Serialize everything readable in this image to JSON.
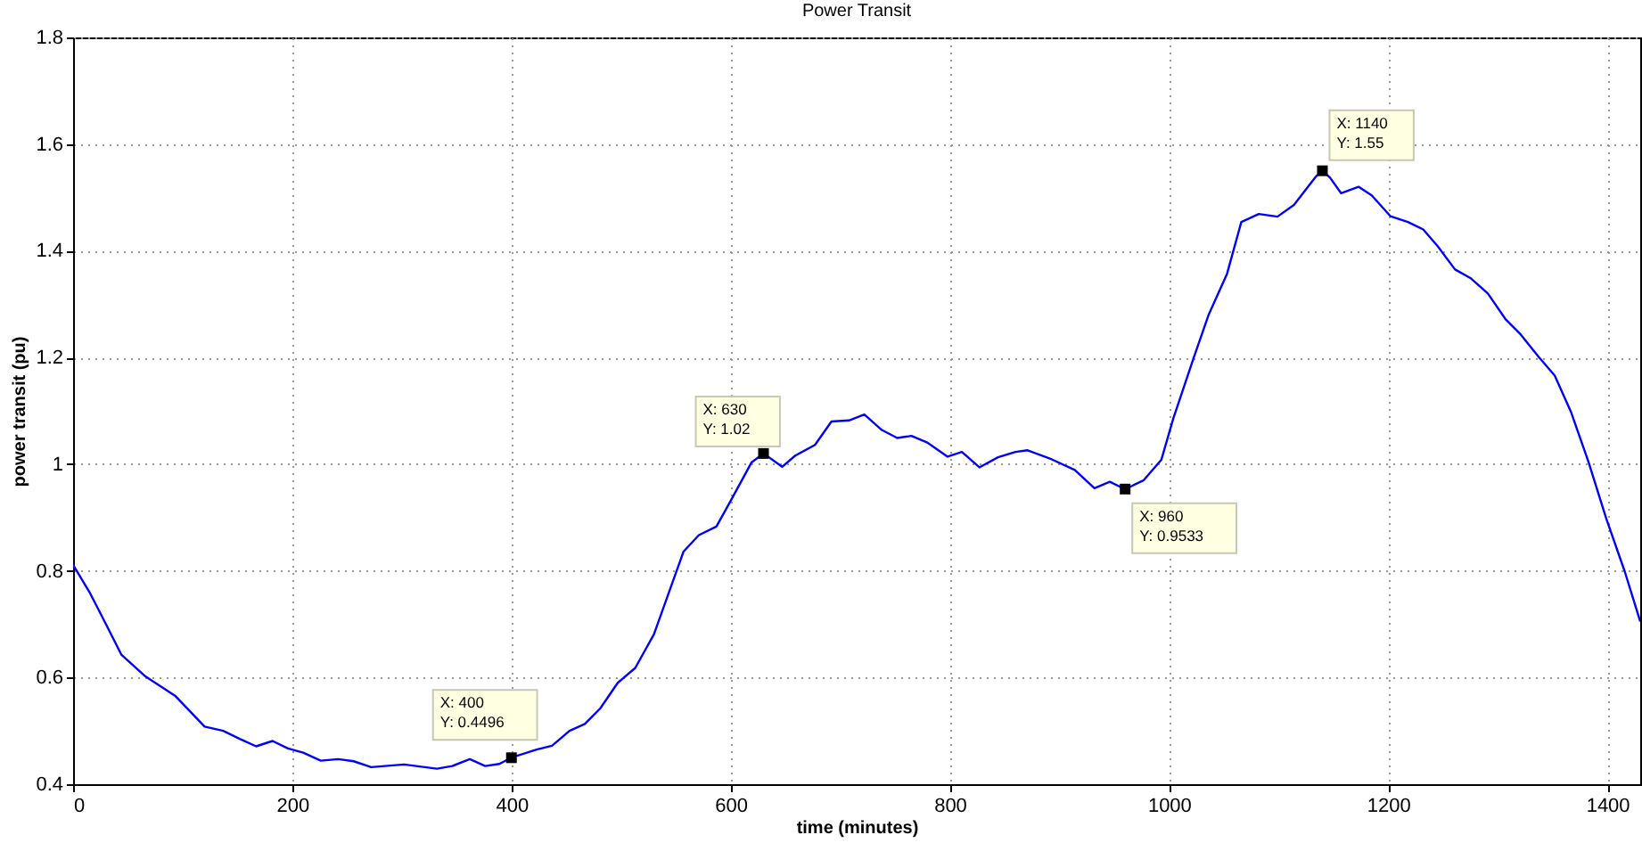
{
  "chart_data": {
    "type": "line",
    "title": "Power Transit",
    "xlabel": "time (minutes)",
    "ylabel": "power transit (pu)",
    "x": [
      0,
      15,
      30,
      44,
      66,
      93,
      120,
      137,
      152,
      167,
      182,
      196,
      210,
      226,
      242,
      256,
      272,
      302,
      332,
      346,
      362,
      376,
      389,
      400,
      423,
      437,
      453,
      467,
      481,
      497,
      513,
      530,
      557,
      571,
      587,
      600,
      619,
      630,
      647,
      659,
      677,
      692,
      708,
      722,
      738,
      752,
      765,
      779,
      798,
      811,
      827,
      844,
      860,
      871,
      893,
      914,
      932,
      946,
      960,
      977,
      993,
      1004,
      1023,
      1036,
      1053,
      1066,
      1082,
      1099,
      1114,
      1134,
      1140,
      1147,
      1157,
      1173,
      1185,
      1202,
      1218,
      1232,
      1245,
      1261,
      1275,
      1291,
      1307,
      1321,
      1337,
      1352,
      1367,
      1383,
      1399,
      1416,
      1430
    ],
    "series": [
      {
        "color": "#0000ff",
        "values": [
          0.811,
          0.76,
          0.7,
          0.643,
          0.602,
          0.566,
          0.508,
          0.5,
          0.485,
          0.471,
          0.481,
          0.467,
          0.459,
          0.444,
          0.447,
          0.443,
          0.432,
          0.437,
          0.429,
          0.434,
          0.447,
          0.434,
          0.438,
          0.45,
          0.465,
          0.472,
          0.5,
          0.513,
          0.542,
          0.59,
          0.618,
          0.681,
          0.836,
          0.867,
          0.883,
          0.931,
          1.003,
          1.02,
          0.995,
          1.016,
          1.036,
          1.08,
          1.082,
          1.093,
          1.064,
          1.049,
          1.053,
          1.041,
          1.014,
          1.023,
          0.994,
          1.013,
          1.023,
          1.026,
          1.009,
          0.989,
          0.955,
          0.967,
          0.953,
          0.97,
          1.008,
          1.086,
          1.202,
          1.279,
          1.357,
          1.454,
          1.469,
          1.464,
          1.486,
          1.539,
          1.55,
          1.537,
          1.508,
          1.52,
          1.504,
          1.465,
          1.454,
          1.44,
          1.409,
          1.365,
          1.349,
          1.32,
          1.272,
          1.243,
          1.202,
          1.166,
          1.097,
          1.003,
          0.898,
          0.798,
          0.705
        ]
      }
    ],
    "xlim": [
      0,
      1430
    ],
    "ylim": [
      0.4,
      1.8
    ],
    "xticks": [
      0,
      200,
      400,
      600,
      800,
      1000,
      1200,
      1400
    ],
    "yticks": [
      0.4,
      0.6,
      0.8,
      1,
      1.2,
      1.4,
      1.6,
      1.8
    ],
    "grid": true,
    "line_style": "solid",
    "marker": "none",
    "annotations": [
      {
        "text": "X: 400\nY: 0.4496",
        "x": 400,
        "y": 0.4496
      },
      {
        "text": "X: 630\nY: 1.02",
        "x": 630,
        "y": 1.02
      },
      {
        "text": "X: 960\nY: 0.9533",
        "x": 960,
        "y": 0.9533
      },
      {
        "text": "X: 1140\nY: 1.55",
        "x": 1140,
        "y": 1.55
      }
    ]
  }
}
